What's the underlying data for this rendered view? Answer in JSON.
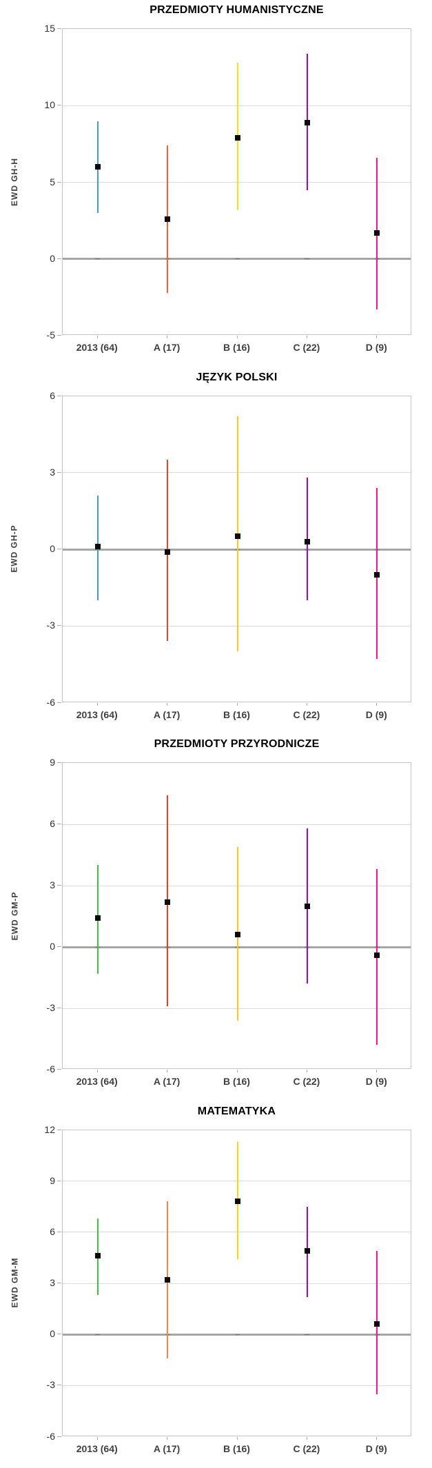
{
  "axis_style": {
    "grid_color": "#DBDBDB",
    "zero_line_color": "#A6A6A6",
    "plot_border_color": "#C6C6C6",
    "tick_text_color": "#2F2F2F",
    "category_text_color": "#3F3F3F",
    "title_color": "#000000",
    "marker_color": "#0A0A0A"
  },
  "chart_data": [
    {
      "type": "errorbar",
      "title": "PRZEDMIOTY HUMANISTYCZNE",
      "ylabel": "EWD GH-H",
      "xlabel": "",
      "ylim": [
        -5,
        15
      ],
      "yticks": [
        15,
        10,
        5,
        0,
        -5
      ],
      "grid": true,
      "legend_position": "none",
      "categories": [
        "2013 (64)",
        "A (17)",
        "B (16)",
        "C (22)",
        "D (9)"
      ],
      "series": [
        {
          "category": "2013 (64)",
          "point": 6.0,
          "low": 3.0,
          "high": 9.0,
          "color": "#3E9BF4"
        },
        {
          "category": "A (17)",
          "point": 2.6,
          "low": -2.2,
          "high": 7.4,
          "color": "#FF5C2B"
        },
        {
          "category": "B (16)",
          "point": 7.9,
          "low": 3.2,
          "high": 12.8,
          "color": "#FFDF0F"
        },
        {
          "category": "C (22)",
          "point": 8.9,
          "low": 4.5,
          "high": 13.4,
          "color": "#A300DF"
        },
        {
          "category": "D (9)",
          "point": 1.7,
          "low": -3.3,
          "high": 6.6,
          "color": "#FF1295"
        }
      ]
    },
    {
      "type": "errorbar",
      "title": "JĘZYK POLSKI",
      "ylabel": "EWD GH-P",
      "xlabel": "",
      "ylim": [
        -6,
        6
      ],
      "yticks": [
        6,
        3,
        0,
        -3,
        -6
      ],
      "grid": true,
      "legend_position": "none",
      "categories": [
        "2013 (64)",
        "A (17)",
        "B (16)",
        "C (22)",
        "D (9)"
      ],
      "series": [
        {
          "category": "2013 (64)",
          "point": 0.1,
          "low": -2.0,
          "high": 2.1,
          "color": "#3E9BF4"
        },
        {
          "category": "A (17)",
          "point": -0.1,
          "low": -3.6,
          "high": 3.5,
          "color": "#F4401E"
        },
        {
          "category": "B (16)",
          "point": 0.5,
          "low": -4.0,
          "high": 5.2,
          "color": "#FFC61E"
        },
        {
          "category": "C (22)",
          "point": 0.3,
          "low": -2.0,
          "high": 2.8,
          "color": "#A300DF"
        },
        {
          "category": "D (9)",
          "point": -1.0,
          "low": -4.3,
          "high": 2.4,
          "color": "#FF1295"
        }
      ]
    },
    {
      "type": "errorbar",
      "title": "PRZEDMIOTY PRZYRODNICZE",
      "ylabel": "EWD GM-P",
      "xlabel": "",
      "ylim": [
        -6,
        9
      ],
      "yticks": [
        9,
        6,
        3,
        0,
        -3,
        -6
      ],
      "grid": true,
      "legend_position": "none",
      "categories": [
        "2013 (64)",
        "A (17)",
        "B (16)",
        "C (22)",
        "D (9)"
      ],
      "series": [
        {
          "category": "2013 (64)",
          "point": 1.4,
          "low": -1.3,
          "high": 4.0,
          "color": "#33CC33"
        },
        {
          "category": "A (17)",
          "point": 2.2,
          "low": -2.9,
          "high": 7.4,
          "color": "#F43C1A"
        },
        {
          "category": "B (16)",
          "point": 0.6,
          "low": -3.6,
          "high": 4.9,
          "color": "#FFC614"
        },
        {
          "category": "C (22)",
          "point": 2.0,
          "low": -1.8,
          "high": 5.8,
          "color": "#A300DF"
        },
        {
          "category": "D (9)",
          "point": -0.4,
          "low": -4.8,
          "high": 3.8,
          "color": "#FF1295"
        }
      ]
    },
    {
      "type": "errorbar",
      "title": "MATEMATYKA",
      "ylabel": "EWD GM-M",
      "xlabel": "",
      "ylim": [
        -6,
        12
      ],
      "yticks": [
        12,
        9,
        6,
        3,
        0,
        -3,
        -6
      ],
      "grid": true,
      "legend_position": "none",
      "categories": [
        "2013 (64)",
        "A (17)",
        "B (16)",
        "C (22)",
        "D (9)"
      ],
      "series": [
        {
          "category": "2013 (64)",
          "point": 4.6,
          "low": 2.3,
          "high": 6.8,
          "color": "#33CC33"
        },
        {
          "category": "A (17)",
          "point": 3.2,
          "low": -1.4,
          "high": 7.8,
          "color": "#FF8040"
        },
        {
          "category": "B (16)",
          "point": 7.8,
          "low": 4.4,
          "high": 11.3,
          "color": "#FFD505"
        },
        {
          "category": "C (22)",
          "point": 4.9,
          "low": 2.2,
          "high": 7.5,
          "color": "#A300DF"
        },
        {
          "category": "D (9)",
          "point": 0.6,
          "low": -3.5,
          "high": 4.9,
          "color": "#FF1295"
        }
      ]
    }
  ]
}
